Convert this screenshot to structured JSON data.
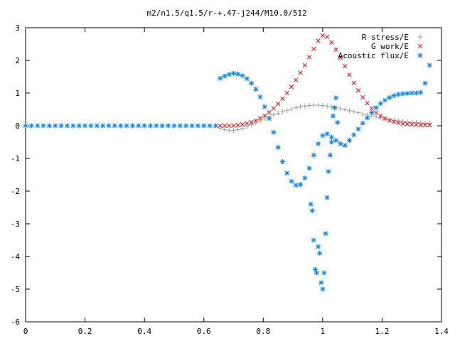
{
  "chart_data": {
    "type": "scatter",
    "title": "m2/n1.5/q1.5/r-+.47-j244/M10.0/512",
    "xlabel": "",
    "ylabel": "",
    "xlim": [
      0,
      1.4
    ],
    "ylim": [
      -6,
      3
    ],
    "x_ticks": [
      "0",
      "0.2",
      "0.4",
      "0.6",
      "0.8",
      "1",
      "1.2",
      "1.4"
    ],
    "y_ticks": [
      "3",
      "2",
      "1",
      "0",
      "-1",
      "-2",
      "-3",
      "-4",
      "-5",
      "-6"
    ],
    "legend_position": "top-right",
    "grid": false,
    "series": [
      {
        "name": "R stress/E",
        "marker": "+",
        "color": "#a0a0a0",
        "x": [
          0.655,
          0.67,
          0.685,
          0.7,
          0.715,
          0.73,
          0.745,
          0.76,
          0.775,
          0.79,
          0.805,
          0.82,
          0.835,
          0.85,
          0.865,
          0.88,
          0.895,
          0.91,
          0.925,
          0.94,
          0.955,
          0.97,
          0.985,
          1.0,
          1.015,
          1.03,
          1.045,
          1.06,
          1.075,
          1.09,
          1.105,
          1.12,
          1.135,
          1.15,
          1.165,
          1.18,
          1.195,
          1.21,
          1.225,
          1.24,
          1.255,
          1.27,
          1.285,
          1.3,
          1.315,
          1.33,
          1.345,
          1.36
        ],
        "y": [
          -0.08,
          -0.12,
          -0.14,
          -0.14,
          -0.12,
          -0.08,
          -0.03,
          0.03,
          0.09,
          0.15,
          0.21,
          0.27,
          0.33,
          0.38,
          0.43,
          0.47,
          0.51,
          0.55,
          0.58,
          0.6,
          0.62,
          0.63,
          0.63,
          0.62,
          0.6,
          0.58,
          0.55,
          0.52,
          0.49,
          0.46,
          0.43,
          0.4,
          0.36,
          0.33,
          0.3,
          0.27,
          0.24,
          0.21,
          0.19,
          0.17,
          0.15,
          0.13,
          0.12,
          0.11,
          0.1,
          0.09,
          0.08,
          0.08
        ]
      },
      {
        "name": "G work/E",
        "marker": "x",
        "color": "#ff0000",
        "x": [
          0.655,
          0.67,
          0.685,
          0.7,
          0.715,
          0.73,
          0.745,
          0.76,
          0.775,
          0.79,
          0.805,
          0.82,
          0.835,
          0.85,
          0.865,
          0.88,
          0.895,
          0.91,
          0.925,
          0.94,
          0.955,
          0.97,
          0.985,
          1.0,
          1.015,
          1.03,
          1.045,
          1.06,
          1.075,
          1.09,
          1.105,
          1.12,
          1.135,
          1.15,
          1.165,
          1.18,
          1.195,
          1.21,
          1.225,
          1.24,
          1.255,
          1.27,
          1.285,
          1.3,
          1.315,
          1.33,
          1.345,
          1.36
        ],
        "y": [
          0.0,
          0.0,
          0.0,
          0.0,
          0.02,
          0.04,
          0.07,
          0.11,
          0.16,
          0.23,
          0.31,
          0.41,
          0.53,
          0.67,
          0.83,
          1.0,
          1.19,
          1.4,
          1.62,
          1.85,
          2.1,
          2.35,
          2.6,
          2.76,
          2.72,
          2.55,
          2.33,
          2.08,
          1.82,
          1.56,
          1.31,
          1.08,
          0.87,
          0.69,
          0.53,
          0.4,
          0.3,
          0.22,
          0.16,
          0.12,
          0.09,
          0.06,
          0.05,
          0.04,
          0.03,
          0.02,
          0.02,
          0.02
        ]
      },
      {
        "name": "Acoustic flux/E",
        "marker": "*",
        "color": "#0080ff",
        "x": [
          0.0,
          0.02,
          0.04,
          0.06,
          0.08,
          0.1,
          0.12,
          0.14,
          0.16,
          0.18,
          0.2,
          0.22,
          0.24,
          0.26,
          0.28,
          0.3,
          0.32,
          0.34,
          0.36,
          0.38,
          0.4,
          0.42,
          0.44,
          0.46,
          0.48,
          0.5,
          0.52,
          0.54,
          0.56,
          0.58,
          0.6,
          0.62,
          0.64,
          0.655,
          0.67,
          0.685,
          0.7,
          0.715,
          0.73,
          0.745,
          0.76,
          0.775,
          0.79,
          0.805,
          0.82,
          0.835,
          0.85,
          0.865,
          0.88,
          0.895,
          0.91,
          0.925,
          0.94,
          0.955,
          0.97,
          0.985,
          1.0,
          1.015,
          1.03,
          1.045,
          1.06,
          1.075,
          1.09,
          1.105,
          1.12,
          1.135,
          1.15,
          1.165,
          1.18,
          1.195,
          1.21,
          1.225,
          1.24,
          1.255,
          1.27,
          1.285,
          1.3,
          1.315,
          1.33,
          1.345,
          1.36,
          0.96,
          0.965,
          0.97,
          0.975,
          0.98,
          0.985,
          0.99,
          0.995,
          1.0,
          1.005,
          1.01,
          1.015,
          1.02,
          1.025,
          1.03,
          1.035,
          1.04,
          1.045,
          1.05
        ],
        "y": [
          0,
          0,
          0,
          0,
          0,
          0,
          0,
          0,
          0,
          0,
          0,
          0,
          0,
          0,
          0,
          0,
          0,
          0,
          0,
          0,
          0,
          0,
          0,
          0,
          0,
          0,
          0,
          0,
          0,
          0,
          0,
          0,
          0,
          1.45,
          1.52,
          1.57,
          1.6,
          1.58,
          1.53,
          1.44,
          1.3,
          1.12,
          0.88,
          0.58,
          0.22,
          -0.2,
          -0.66,
          -1.1,
          -1.45,
          -1.7,
          -1.82,
          -1.8,
          -1.6,
          -1.3,
          -0.9,
          -0.55,
          -0.3,
          -0.25,
          -0.35,
          -0.45,
          -0.55,
          -0.6,
          -0.45,
          -0.28,
          -0.1,
          0.08,
          0.24,
          0.4,
          0.55,
          0.68,
          0.78,
          0.86,
          0.92,
          0.96,
          0.98,
          0.99,
          1.0,
          1.0,
          1.02,
          1.3,
          1.85,
          -2.4,
          -2.6,
          -3.5,
          -4.4,
          -4.5,
          -3.7,
          -3.9,
          -4.8,
          -5.0,
          -4.5,
          -3.3,
          -2.2,
          -1.4,
          -0.9,
          -0.5,
          0.3,
          0.55,
          0.85,
          0.1
        ]
      }
    ]
  }
}
